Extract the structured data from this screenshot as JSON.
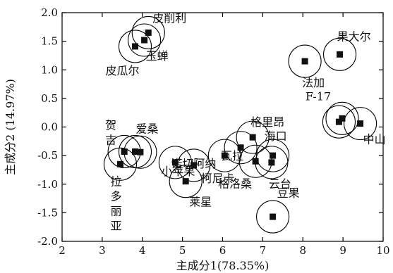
{
  "chart_data": {
    "type": "scatter",
    "xlabel": "主成分1(78.35%)",
    "ylabel": "主成分2 (14.97%)",
    "xlim": [
      2,
      10
    ],
    "ylim": [
      -2.0,
      2.0
    ],
    "xticks": [
      "2",
      "3",
      "4",
      "5",
      "6",
      "7",
      "8",
      "9",
      "10"
    ],
    "yticks": [
      "2.0",
      "1.5",
      "1.0",
      "0.5",
      "0.0",
      "-0.5",
      "-1.0",
      "-1.5",
      "-2.0"
    ],
    "grid": false,
    "legend": "none",
    "marker_color": "#111111",
    "ring_color": "#000000",
    "points": [
      {
        "label": "皮削利",
        "x": 4.15,
        "y": 1.65
      },
      {
        "label": "玉蝉",
        "x": 4.05,
        "y": 1.52
      },
      {
        "label": "皮瓜尔",
        "x": 3.82,
        "y": 1.41
      },
      {
        "label": "果大尔",
        "x": 8.92,
        "y": 1.27
      },
      {
        "label": "法加",
        "x": 8.05,
        "y": 1.15
      },
      {
        "label": "F-17",
        "x": 8.98,
        "y": 0.15
      },
      {
        "label": "中山",
        "x": 9.43,
        "y": 0.06
      },
      {
        "label": "",
        "x": 8.9,
        "y": 0.09
      },
      {
        "label": "格里昂",
        "x": 6.75,
        "y": -0.18
      },
      {
        "label": "海口",
        "x": 7.25,
        "y": -0.5
      },
      {
        "label": "瓦拉",
        "x": 6.45,
        "y": -0.36
      },
      {
        "label": "诺切阿纳",
        "x": 6.05,
        "y": -0.5
      },
      {
        "label": "云台",
        "x": 7.22,
        "y": -0.62
      },
      {
        "label": "格洛桑",
        "x": 6.82,
        "y": -0.6
      },
      {
        "label": "贺吉",
        "x": 3.55,
        "y": -0.43
      },
      {
        "label": "爱桑",
        "x": 3.82,
        "y": -0.43
      },
      {
        "label": "",
        "x": 3.95,
        "y": -0.44
      },
      {
        "label": "小苹果",
        "x": 4.82,
        "y": -0.62
      },
      {
        "label": "柯尼卡",
        "x": 5.28,
        "y": -0.67
      },
      {
        "label": "莱星",
        "x": 5.08,
        "y": -0.95
      },
      {
        "label": "拉多丽亚",
        "x": 3.45,
        "y": -0.65
      },
      {
        "label": "豆果",
        "x": 7.25,
        "y": -1.57
      }
    ]
  }
}
